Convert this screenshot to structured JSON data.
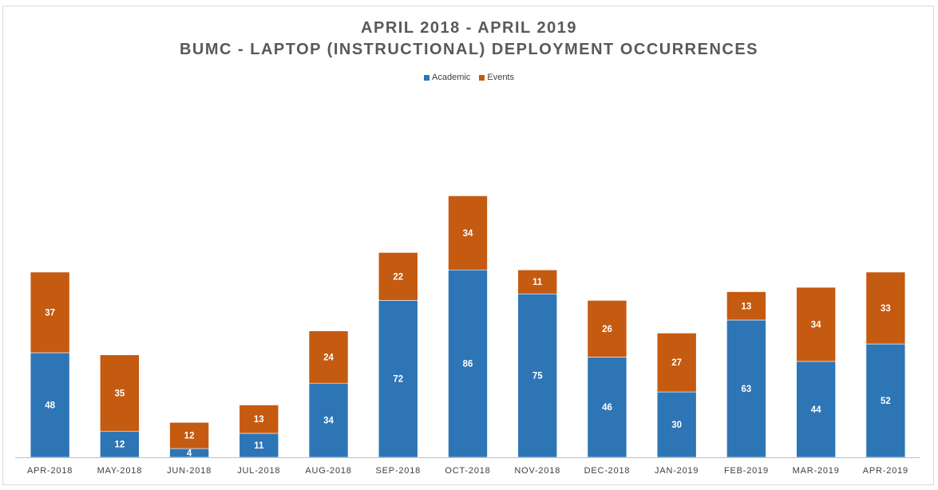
{
  "chart_data": {
    "type": "bar",
    "stacked": true,
    "title": "APRIL 2018 - APRIL 2019",
    "subtitle": "BUMC - LAPTOP (INSTRUCTIONAL) DEPLOYMENT OCCURRENCES",
    "categories": [
      "APR-2018",
      "MAY-2018",
      "JUN-2018",
      "JUL-2018",
      "AUG-2018",
      "SEP-2018",
      "OCT-2018",
      "NOV-2018",
      "DEC-2018",
      "JAN-2019",
      "FEB-2019",
      "MAR-2019",
      "APR-2019"
    ],
    "series": [
      {
        "name": "Academic",
        "color": "#2e75b6",
        "values": [
          48,
          12,
          4,
          11,
          34,
          72,
          86,
          75,
          46,
          30,
          63,
          44,
          52
        ]
      },
      {
        "name": "Events",
        "color": "#c55a11",
        "values": [
          37,
          35,
          12,
          13,
          24,
          22,
          34,
          11,
          26,
          27,
          13,
          34,
          33
        ]
      }
    ],
    "legend_position": "top",
    "grid": false,
    "ylim": [
      0,
      150
    ]
  }
}
